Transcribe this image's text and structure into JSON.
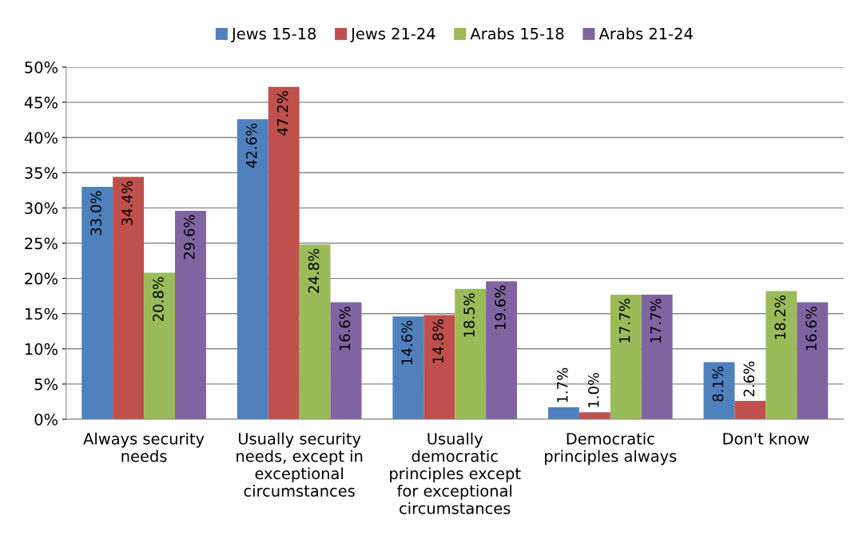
{
  "chart_data": {
    "type": "bar",
    "categories": [
      "Always security\nneeds",
      "Usually security\nneeds, except in\nexceptional\ncircumstances",
      "Usually\ndemocratic\nprinciples except\nfor exceptional\ncircumstances",
      "Democratic\nprinciples always",
      "Don't know"
    ],
    "series": [
      {
        "name": "Jews 15-18",
        "color": "#4f81bd",
        "values": [
          33.0,
          42.6,
          14.6,
          1.7,
          8.1
        ],
        "value_labels": [
          "33.0%",
          "42.6%",
          "14.6%",
          "1.7%",
          "8.1%"
        ]
      },
      {
        "name": "Jews 21-24",
        "color": "#c0504d",
        "values": [
          34.4,
          47.2,
          14.8,
          1.0,
          2.6
        ],
        "value_labels": [
          "34.4%",
          "47.2%",
          "14.8%",
          "1.0%",
          "2.6%"
        ]
      },
      {
        "name": "Arabs 15-18",
        "color": "#9bbb59",
        "values": [
          20.8,
          24.8,
          18.5,
          17.7,
          18.2
        ],
        "value_labels": [
          "20.8%",
          "24.8%",
          "18.5%",
          "17.7%",
          "18.2%"
        ]
      },
      {
        "name": "Arabs 21-24",
        "color": "#8064a2",
        "values": [
          29.6,
          16.6,
          19.6,
          17.7,
          16.6
        ],
        "value_labels": [
          "29.6%",
          "16.6%",
          "19.6%",
          "17.7%",
          "16.6%"
        ]
      }
    ],
    "ylim": [
      0,
      50
    ],
    "yticks": [
      {
        "value": 0,
        "label": "0%"
      },
      {
        "value": 5,
        "label": "5%"
      },
      {
        "value": 10,
        "label": "10%"
      },
      {
        "value": 15,
        "label": "15%"
      },
      {
        "value": 20,
        "label": "20%"
      },
      {
        "value": 25,
        "label": "25%"
      },
      {
        "value": 30,
        "label": "30%"
      },
      {
        "value": 35,
        "label": "35%"
      },
      {
        "value": 40,
        "label": "40%"
      },
      {
        "value": 45,
        "label": "45%"
      },
      {
        "value": 50,
        "label": "50%"
      }
    ],
    "grid": "y",
    "legend": "top"
  }
}
